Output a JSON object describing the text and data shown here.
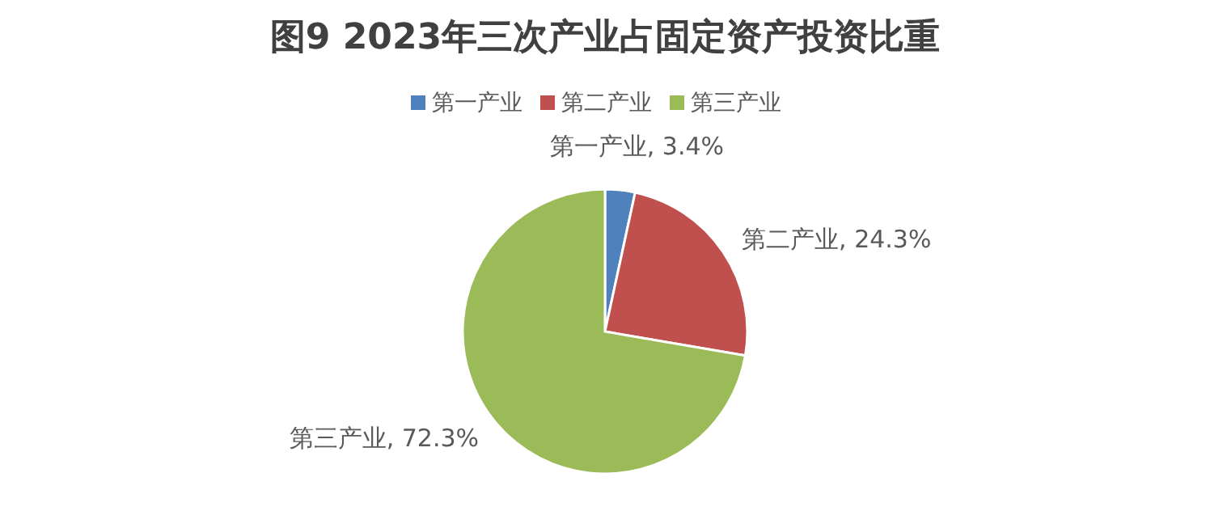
{
  "chart_data": {
    "type": "pie",
    "title": "图9 2023年三次产业占固定资产投资比重",
    "categories": [
      "第一产业",
      "第二产业",
      "第三产业"
    ],
    "values": [
      3.4,
      24.3,
      72.3
    ],
    "colors": [
      "#4f81bd",
      "#c0504d",
      "#9bbb59"
    ],
    "value_labels": [
      "第一产业, 3.4%",
      "第二产业, 24.3%",
      "第三产业, 72.3%"
    ],
    "legend": "top"
  }
}
